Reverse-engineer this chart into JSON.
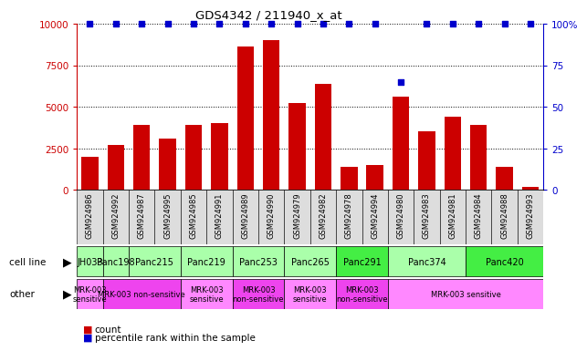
{
  "title": "GDS4342 / 211940_x_at",
  "samples": [
    "GSM924986",
    "GSM924992",
    "GSM924987",
    "GSM924995",
    "GSM924985",
    "GSM924991",
    "GSM924989",
    "GSM924990",
    "GSM924979",
    "GSM924982",
    "GSM924978",
    "GSM924994",
    "GSM924980",
    "GSM924983",
    "GSM924981",
    "GSM924984",
    "GSM924988",
    "GSM924993"
  ],
  "counts": [
    2000,
    2700,
    3900,
    3100,
    3900,
    4000,
    8600,
    9000,
    5200,
    6400,
    1400,
    1500,
    5600,
    3500,
    4400,
    3900,
    1400,
    200
  ],
  "percentiles": [
    100,
    100,
    100,
    100,
    100,
    100,
    100,
    100,
    100,
    100,
    100,
    100,
    65,
    100,
    100,
    100,
    100,
    100
  ],
  "cell_lines": [
    {
      "label": "JH033",
      "start": 0,
      "end": 1,
      "color": "#aaffaa"
    },
    {
      "label": "Panc198",
      "start": 1,
      "end": 2,
      "color": "#aaffaa"
    },
    {
      "label": "Panc215",
      "start": 2,
      "end": 4,
      "color": "#aaffaa"
    },
    {
      "label": "Panc219",
      "start": 4,
      "end": 6,
      "color": "#aaffaa"
    },
    {
      "label": "Panc253",
      "start": 6,
      "end": 8,
      "color": "#aaffaa"
    },
    {
      "label": "Panc265",
      "start": 8,
      "end": 10,
      "color": "#aaffaa"
    },
    {
      "label": "Panc291",
      "start": 10,
      "end": 12,
      "color": "#44ee44"
    },
    {
      "label": "Panc374",
      "start": 12,
      "end": 15,
      "color": "#aaffaa"
    },
    {
      "label": "Panc420",
      "start": 15,
      "end": 18,
      "color": "#44ee44"
    }
  ],
  "other_groups": [
    {
      "label": "MRK-003\nsensitive",
      "start": 0,
      "end": 1,
      "color": "#ff88ff"
    },
    {
      "label": "MRK-003 non-sensitive",
      "start": 1,
      "end": 4,
      "color": "#ee44ee"
    },
    {
      "label": "MRK-003\nsensitive",
      "start": 4,
      "end": 6,
      "color": "#ff88ff"
    },
    {
      "label": "MRK-003\nnon-sensitive",
      "start": 6,
      "end": 8,
      "color": "#ee44ee"
    },
    {
      "label": "MRK-003\nsensitive",
      "start": 8,
      "end": 10,
      "color": "#ff88ff"
    },
    {
      "label": "MRK-003\nnon-sensitive",
      "start": 10,
      "end": 12,
      "color": "#ee44ee"
    },
    {
      "label": "MRK-003 sensitive",
      "start": 12,
      "end": 18,
      "color": "#ff88ff"
    }
  ],
  "bar_color": "#cc0000",
  "dot_color": "#0000cc",
  "left_axis_color": "#cc0000",
  "right_axis_color": "#0000cc",
  "ylim_left": [
    0,
    10000
  ],
  "ylim_right": [
    0,
    100
  ],
  "yticks_left": [
    0,
    2500,
    5000,
    7500,
    10000
  ],
  "yticks_right": [
    0,
    25,
    50,
    75,
    100
  ],
  "xtick_col_bg": "#dddddd",
  "background_color": "#ffffff"
}
